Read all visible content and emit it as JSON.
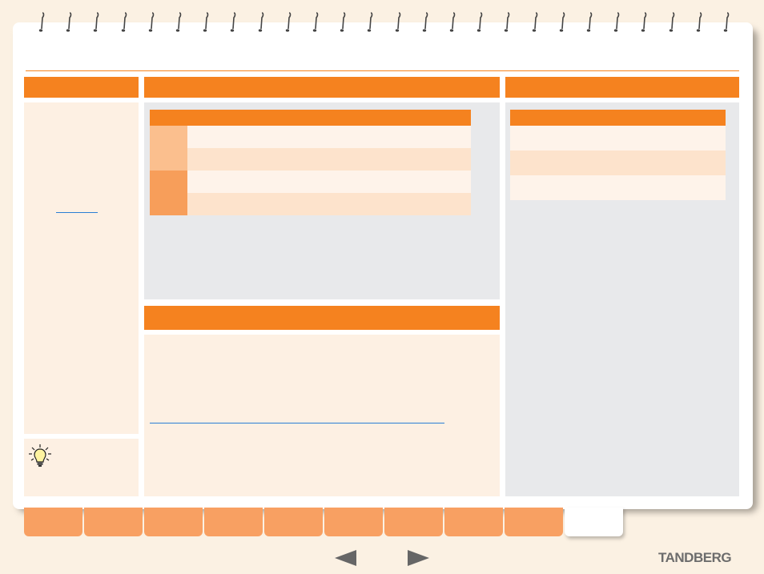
{
  "brand": {
    "logo_text": "TANDBERG"
  },
  "navigation": {
    "prev_icon": "left-arrow-icon",
    "next_icon": "right-arrow-icon"
  },
  "tabs": [
    {
      "label": ""
    },
    {
      "label": ""
    },
    {
      "label": ""
    },
    {
      "label": ""
    },
    {
      "label": ""
    },
    {
      "label": ""
    },
    {
      "label": ""
    },
    {
      "label": ""
    },
    {
      "label": ""
    },
    {
      "label": "",
      "active": true
    }
  ],
  "panels": {
    "left": {
      "header": "",
      "link_text": ""
    },
    "middle": {
      "header": "",
      "table": {
        "header": "",
        "rows": [
          "",
          "",
          "",
          ""
        ]
      }
    },
    "middle_bottom": {
      "header": "",
      "link_text": ""
    },
    "right": {
      "header": "",
      "table": {
        "header": "",
        "rows": [
          "",
          "",
          ""
        ]
      }
    }
  },
  "tip": {
    "icon": "lightbulb-icon"
  }
}
